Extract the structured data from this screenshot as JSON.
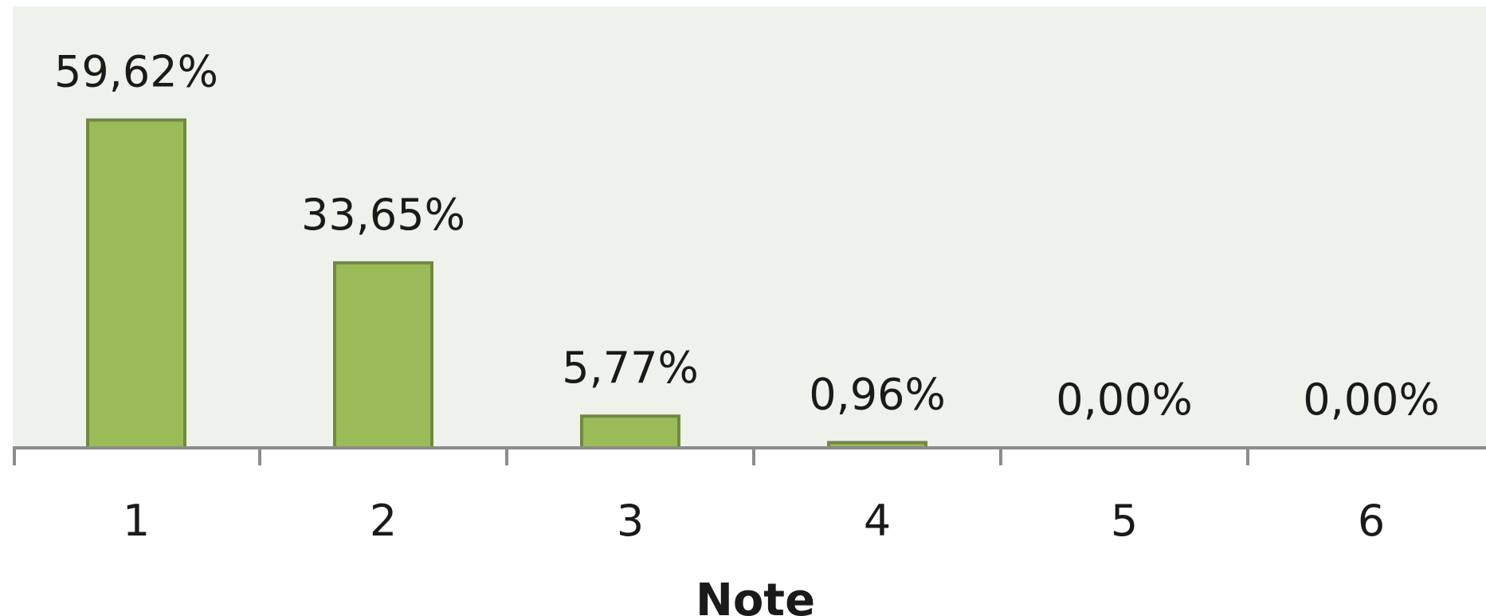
{
  "chart_data": {
    "type": "bar",
    "categories": [
      "1",
      "2",
      "3",
      "4",
      "5",
      "6"
    ],
    "values": [
      59.62,
      33.65,
      5.77,
      0.96,
      0.0,
      0.0
    ],
    "data_labels": [
      "59,62%",
      "33,65%",
      "5,77%",
      "0,96%",
      "0,00%",
      "0,00%"
    ],
    "title": "",
    "xlabel": "Note",
    "ylabel": "",
    "ylim": [
      0,
      70
    ],
    "grid": false,
    "legend": "none"
  },
  "colors": {
    "plot_background": "#eff2ea",
    "bar_fill": "#9bbb59",
    "bar_stroke": "#71893f",
    "axis": "#8c8c8c"
  }
}
